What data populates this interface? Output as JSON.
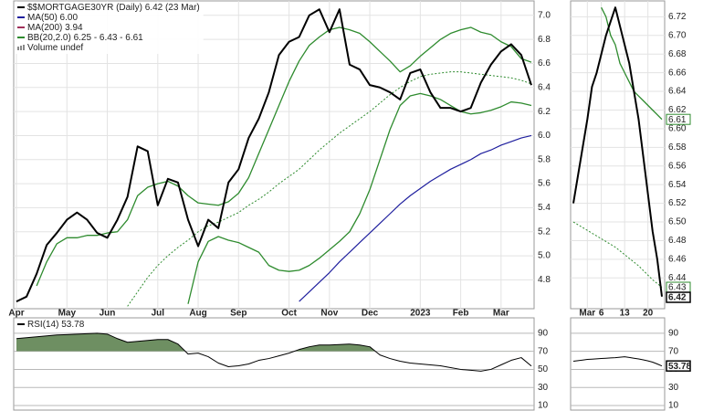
{
  "chart_data": [
    {
      "type": "line",
      "legend": [
        {
          "label": "$$MORTGAGE30YR (Daily) 6.42 (23 Mar)",
          "color": "#000000"
        },
        {
          "label": "MA(50) 6.00",
          "color": "#1f1f9e"
        },
        {
          "label": "MA(200) 3.94",
          "color": "#a0305a"
        },
        {
          "label": "BB(20,2.0) 6.25 - 6.43 - 6.61",
          "color": "#2e8b2e"
        },
        {
          "label": "Volume undef",
          "color": "#888888",
          "marker": "bars"
        }
      ],
      "categories": [
        "Apr",
        null,
        null,
        null,
        null,
        "May",
        null,
        null,
        null,
        "Jun",
        null,
        null,
        null,
        null,
        "Jul",
        null,
        null,
        null,
        "Aug",
        null,
        null,
        null,
        "Sep",
        null,
        null,
        null,
        null,
        "Oct",
        null,
        null,
        null,
        "Nov",
        null,
        null,
        null,
        "Dec",
        null,
        null,
        null,
        null,
        "2023",
        null,
        null,
        null,
        "Feb",
        null,
        null,
        null,
        "Mar",
        null,
        null,
        null
      ],
      "series": [
        {
          "color": "#2e8b2e",
          "width": 1.3,
          "style": "solid",
          "values": [
            null,
            null,
            4.75,
            4.95,
            5.1,
            5.15,
            5.15,
            5.17,
            5.17,
            5.19,
            5.2,
            5.3,
            5.5,
            5.57,
            5.6,
            5.62,
            5.58,
            5.5,
            5.44,
            5.43,
            5.42,
            5.45,
            5.52,
            5.65,
            5.85,
            6.05,
            6.25,
            6.45,
            6.62,
            6.75,
            6.82,
            6.88,
            6.9,
            6.88,
            6.85,
            6.78,
            6.7,
            6.62,
            6.53,
            6.58,
            6.66,
            6.73,
            6.8,
            6.85,
            6.88,
            6.9,
            6.86,
            6.84,
            6.78,
            6.74,
            6.64,
            6.61
          ]
        },
        {
          "color": "#2e8b2e",
          "width": 1,
          "style": "dotted",
          "values": [
            null,
            null,
            null,
            null,
            null,
            null,
            null,
            null,
            null,
            null,
            null,
            4.58,
            4.7,
            4.82,
            4.92,
            5.0,
            5.07,
            5.13,
            5.2,
            5.25,
            5.28,
            5.32,
            5.36,
            5.42,
            5.47,
            5.53,
            5.6,
            5.66,
            5.72,
            5.8,
            5.88,
            5.95,
            6.02,
            6.08,
            6.14,
            6.2,
            6.27,
            6.34,
            6.4,
            6.45,
            6.49,
            6.51,
            6.52,
            6.53,
            6.53,
            6.52,
            6.51,
            6.5,
            6.49,
            6.48,
            6.46,
            6.43
          ]
        },
        {
          "color": "#2e8b2e",
          "width": 1.3,
          "style": "solid",
          "values": [
            null,
            null,
            null,
            null,
            null,
            null,
            null,
            null,
            null,
            null,
            null,
            null,
            null,
            null,
            null,
            null,
            null,
            4.6,
            4.95,
            5.12,
            5.16,
            5.13,
            5.11,
            5.07,
            5.03,
            4.92,
            4.88,
            4.87,
            4.88,
            4.92,
            4.98,
            5.05,
            5.12,
            5.2,
            5.35,
            5.55,
            5.8,
            6.05,
            6.25,
            6.33,
            6.35,
            6.33,
            6.3,
            6.25,
            6.2,
            6.18,
            6.19,
            6.21,
            6.24,
            6.28,
            6.27,
            6.25
          ]
        },
        {
          "color": "#1f1f9e",
          "width": 1.2,
          "style": "solid",
          "values": [
            null,
            null,
            null,
            null,
            null,
            null,
            null,
            null,
            null,
            null,
            null,
            null,
            null,
            null,
            null,
            null,
            null,
            null,
            null,
            null,
            null,
            null,
            null,
            null,
            null,
            null,
            null,
            null,
            4.62,
            4.7,
            4.78,
            4.86,
            4.95,
            5.03,
            5.11,
            5.19,
            5.27,
            5.35,
            5.43,
            5.5,
            5.56,
            5.62,
            5.67,
            5.72,
            5.76,
            5.8,
            5.85,
            5.88,
            5.92,
            5.95,
            5.98,
            6.0
          ]
        },
        {
          "color": "#000000",
          "width": 2,
          "style": "solid",
          "values": [
            4.62,
            4.66,
            4.85,
            5.09,
            5.19,
            5.3,
            5.36,
            5.3,
            5.19,
            5.15,
            5.3,
            5.49,
            5.91,
            5.87,
            5.42,
            5.64,
            5.61,
            5.3,
            5.08,
            5.3,
            5.23,
            5.61,
            5.72,
            5.98,
            6.14,
            6.36,
            6.67,
            6.78,
            6.82,
            7.0,
            7.05,
            6.86,
            7.05,
            6.59,
            6.55,
            6.42,
            6.4,
            6.36,
            6.3,
            6.52,
            6.55,
            6.36,
            6.23,
            6.23,
            6.2,
            6.23,
            6.44,
            6.59,
            6.7,
            6.76,
            6.67,
            6.42
          ]
        }
      ],
      "ylim": [
        4.56,
        7.12
      ],
      "yticks": [
        4.8,
        {
          "value": 5.0,
          "label": "5.0"
        },
        5.2,
        5.4,
        5.6,
        5.8,
        {
          "value": 6.0,
          "label": "6.0"
        },
        6.2,
        6.4,
        6.6,
        6.8,
        {
          "value": 7.0,
          "label": "7.0"
        }
      ],
      "grid": true
    },
    {
      "type": "line",
      "categories": [
        null,
        null,
        null,
        "Mar",
        null,
        null,
        "6",
        null,
        null,
        null,
        null,
        "13",
        null,
        null,
        null,
        null,
        "20",
        null,
        null,
        null
      ],
      "series": [
        {
          "color": "#2e8b2e",
          "width": 1.3,
          "style": "solid",
          "label_last": true,
          "values": [
            null,
            null,
            null,
            null,
            null,
            null,
            6.73,
            6.72,
            6.7,
            6.69,
            6.67,
            6.66,
            6.65,
            6.64,
            6.635,
            6.63,
            6.625,
            6.62,
            6.615,
            6.61
          ]
        },
        {
          "color": "#2e8b2e",
          "width": 1,
          "style": "dotted",
          "label_last": true,
          "values": [
            6.5,
            6.497,
            6.494,
            6.491,
            6.488,
            6.485,
            6.482,
            6.479,
            6.476,
            6.473,
            6.469,
            6.465,
            6.461,
            6.457,
            6.453,
            6.448,
            6.443,
            6.438,
            6.434,
            6.43
          ]
        },
        {
          "color": "#000000",
          "width": 2,
          "style": "solid",
          "label_last": true,
          "values": [
            6.52,
            6.55,
            6.58,
            6.61,
            6.645,
            6.66,
            6.68,
            6.7,
            6.715,
            6.73,
            6.71,
            6.69,
            6.67,
            6.64,
            6.61,
            6.57,
            6.53,
            6.49,
            6.46,
            6.42
          ]
        }
      ],
      "ylim": [
        6.407,
        6.737
      ],
      "yticks": [
        6.44,
        6.46,
        6.48,
        {
          "value": 6.5,
          "label": "6.50"
        },
        6.52,
        6.54,
        6.56,
        6.58,
        {
          "value": 6.6,
          "label": "6.60"
        },
        6.62,
        6.64,
        6.66,
        6.68,
        {
          "value": 6.7,
          "label": "6.70"
        },
        6.72
      ],
      "grid": true
    },
    {
      "type": "line",
      "legend": [
        {
          "label": "RSI(14) 53.78",
          "color": "#000000"
        }
      ],
      "series": [
        {
          "color": "#000000",
          "width": 1,
          "style": "solid",
          "values": [
            84,
            85,
            86,
            87,
            88,
            88.5,
            89,
            89.5,
            90,
            89,
            84,
            80,
            81,
            82,
            83,
            83,
            78,
            67,
            68,
            64,
            57,
            53,
            54,
            56,
            60,
            62,
            65,
            68,
            72,
            75,
            77,
            77,
            77.5,
            78,
            77,
            75,
            66,
            62,
            59,
            57,
            56,
            55,
            54,
            52,
            50,
            49,
            48,
            50,
            55,
            60,
            63,
            53.78
          ]
        }
      ],
      "fill_above": 70,
      "fill_color": "#6e8f62",
      "ylim": [
        5,
        107
      ],
      "yticks": [
        10,
        30,
        50,
        70,
        90
      ],
      "grid": true
    },
    {
      "type": "line",
      "series": [
        {
          "color": "#000000",
          "width": 1,
          "style": "solid",
          "label_last": true,
          "values": [
            59,
            59.7,
            60.3,
            61,
            61.3,
            61.7,
            62,
            62.3,
            62.7,
            63,
            63.5,
            64,
            63.2,
            62.3,
            61.5,
            60.5,
            59.4,
            58,
            56,
            53.78
          ]
        }
      ],
      "ylim": [
        5,
        107
      ],
      "yticks": [
        10,
        30,
        50,
        70,
        90
      ],
      "grid": true
    }
  ]
}
